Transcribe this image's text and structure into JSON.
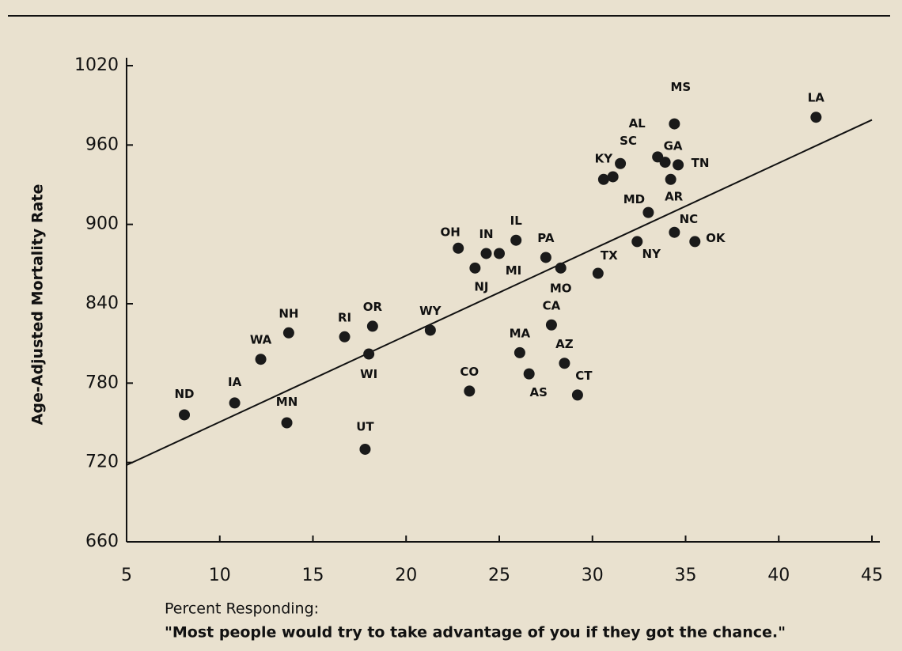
{
  "chart_data": {
    "type": "scatter",
    "ylabel": "Age-Adjusted Mortality Rate",
    "xlabel": [
      "Percent Responding:",
      "\"Most people would try to take advantage of you if they got the chance.\""
    ],
    "xlim": [
      5,
      45
    ],
    "xticks": [
      5,
      10,
      15,
      20,
      25,
      30,
      35,
      40,
      45
    ],
    "ylim": [
      660,
      1020
    ],
    "yticks": [
      660,
      720,
      780,
      840,
      900,
      960,
      1020
    ],
    "color": "#1a1a1a",
    "categories": [
      "ND",
      "IA",
      "MN",
      "WA",
      "NH",
      "RI",
      "OR",
      "WI",
      "UT",
      "WY",
      "CO",
      "OH",
      "NJ",
      "IN",
      "MI",
      "IL",
      "PA",
      "MO",
      "CA",
      "MA",
      "AS",
      "AZ",
      "CT",
      "TX",
      "KY",
      null,
      "SC",
      "MS",
      "AL",
      "GA",
      "TN",
      "AR",
      "MD",
      "NC",
      "NY",
      "OK",
      "LA"
    ],
    "x": [
      8.1,
      10.8,
      13.6,
      12.2,
      13.7,
      16.7,
      18.2,
      18.0,
      17.8,
      21.3,
      23.4,
      22.8,
      23.7,
      24.3,
      25.0,
      25.9,
      27.5,
      28.3,
      27.8,
      26.1,
      26.6,
      28.5,
      29.2,
      30.3,
      30.6,
      31.1,
      31.5,
      34.4,
      33.5,
      33.9,
      34.6,
      34.2,
      33.0,
      34.4,
      32.4,
      35.5,
      42.0
    ],
    "values": [
      756,
      765,
      750,
      798,
      818,
      815,
      823,
      802,
      730,
      820,
      774,
      882,
      867,
      878,
      878,
      888,
      875,
      867,
      824,
      803,
      787,
      795,
      771,
      863,
      934,
      936,
      946,
      976,
      951,
      947,
      945,
      934,
      909,
      894,
      887,
      887,
      981
    ],
    "trendline": {
      "x": [
        5,
        45
      ],
      "y": [
        718,
        979
      ]
    }
  }
}
